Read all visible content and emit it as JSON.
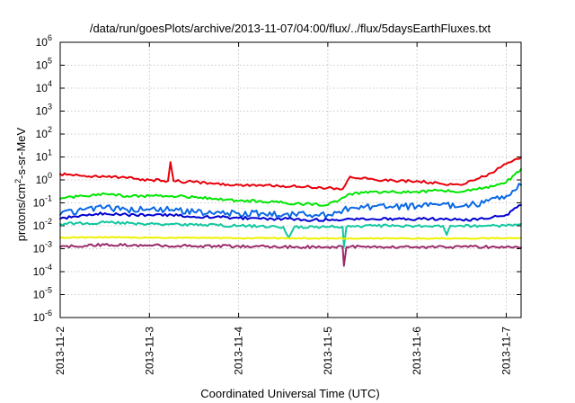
{
  "chart_data": {
    "type": "line",
    "title": "/data/run/goesPlots/archive/2013-11-07/04:00/flux/../flux/5daysEarthFluxes.txt",
    "xlabel": "Coordinated Universal Time (UTC)",
    "ylabel": {
      "prefix": "protons/cm",
      "sup": "2",
      "suffix": "-s-sr-MeV"
    },
    "y_scale": "log",
    "ylim": [
      1e-06,
      1000000.0
    ],
    "y_ticks": [
      {
        "base": "10",
        "exp": "-6"
      },
      {
        "base": "10",
        "exp": "-5"
      },
      {
        "base": "10",
        "exp": "-4"
      },
      {
        "base": "10",
        "exp": "-3"
      },
      {
        "base": "10",
        "exp": "-2"
      },
      {
        "base": "10",
        "exp": "-1"
      },
      {
        "base": "10",
        "exp": "0"
      },
      {
        "base": "10",
        "exp": "1"
      },
      {
        "base": "10",
        "exp": "2"
      },
      {
        "base": "10",
        "exp": "3"
      },
      {
        "base": "10",
        "exp": "4"
      },
      {
        "base": "10",
        "exp": "5"
      },
      {
        "base": "10",
        "exp": "6"
      }
    ],
    "xlim": [
      "2013-11-02 00:00",
      "2013-11-07 04:00"
    ],
    "x_ticks": [
      "2013-11-2",
      "2013-11-3",
      "2013-11-4",
      "2013-11-5",
      "2013-11-6",
      "2013-11-7"
    ],
    "grid": true,
    "legend": "none",
    "series": [
      {
        "color": "#e8000b",
        "points": [
          [
            "2013-11-02 00:00",
            1.8
          ],
          [
            "2013-11-02 06:00",
            1.5
          ],
          [
            "2013-11-02 12:00",
            1.4
          ],
          [
            "2013-11-02 18:00",
            1.2
          ],
          [
            "2013-11-03 00:00",
            1.0
          ],
          [
            "2013-11-03 05:00",
            0.9
          ],
          [
            "2013-11-03 05:40",
            6.0
          ],
          [
            "2013-11-03 06:30",
            0.9
          ],
          [
            "2013-11-03 12:00",
            0.8
          ],
          [
            "2013-11-03 18:00",
            0.7
          ],
          [
            "2013-11-04 00:00",
            0.6
          ],
          [
            "2013-11-04 06:00",
            0.6
          ],
          [
            "2013-11-04 12:00",
            0.55
          ],
          [
            "2013-11-04 18:00",
            0.5
          ],
          [
            "2013-11-05 00:00",
            0.45
          ],
          [
            "2013-11-05 04:00",
            0.4
          ],
          [
            "2013-11-05 06:00",
            1.4
          ],
          [
            "2013-11-05 12:00",
            1.1
          ],
          [
            "2013-11-05 18:00",
            0.9
          ],
          [
            "2013-11-06 00:00",
            0.9
          ],
          [
            "2013-11-06 06:00",
            0.7
          ],
          [
            "2013-11-06 12:00",
            0.6
          ],
          [
            "2013-11-06 18:00",
            1.4
          ],
          [
            "2013-11-06 20:00",
            2.0
          ],
          [
            "2013-11-07 00:00",
            5.0
          ],
          [
            "2013-11-07 04:00",
            10.0
          ]
        ]
      },
      {
        "color": "#00e600",
        "points": [
          [
            "2013-11-02 00:00",
            0.15
          ],
          [
            "2013-11-02 06:00",
            0.2
          ],
          [
            "2013-11-02 12:00",
            0.25
          ],
          [
            "2013-11-02 18:00",
            0.2
          ],
          [
            "2013-11-03 00:00",
            0.2
          ],
          [
            "2013-11-03 06:00",
            0.2
          ],
          [
            "2013-11-03 12:00",
            0.18
          ],
          [
            "2013-11-03 18:00",
            0.15
          ],
          [
            "2013-11-04 00:00",
            0.12
          ],
          [
            "2013-11-04 06:00",
            0.12
          ],
          [
            "2013-11-04 12:00",
            0.1
          ],
          [
            "2013-11-04 18:00",
            0.09
          ],
          [
            "2013-11-05 00:00",
            0.08
          ],
          [
            "2013-11-05 06:00",
            0.25
          ],
          [
            "2013-11-05 12:00",
            0.3
          ],
          [
            "2013-11-05 18:00",
            0.3
          ],
          [
            "2013-11-06 00:00",
            0.3
          ],
          [
            "2013-11-06 06:00",
            0.35
          ],
          [
            "2013-11-06 12:00",
            0.3
          ],
          [
            "2013-11-06 18:00",
            0.45
          ],
          [
            "2013-11-07 00:00",
            0.8
          ],
          [
            "2013-11-07 04:00",
            3.0
          ]
        ]
      },
      {
        "color": "#0a68e6",
        "points": [
          [
            "2013-11-02 00:00",
            0.03
          ],
          [
            "2013-11-02 06:00",
            0.05
          ],
          [
            "2013-11-02 12:00",
            0.06
          ],
          [
            "2013-11-02 18:00",
            0.05
          ],
          [
            "2013-11-03 00:00",
            0.05
          ],
          [
            "2013-11-03 06:00",
            0.05
          ],
          [
            "2013-11-03 12:00",
            0.04
          ],
          [
            "2013-11-03 18:00",
            0.04
          ],
          [
            "2013-11-04 00:00",
            0.035
          ],
          [
            "2013-11-04 06:00",
            0.035
          ],
          [
            "2013-11-04 12:00",
            0.03
          ],
          [
            "2013-11-04 18:00",
            0.03
          ],
          [
            "2013-11-05 00:00",
            0.03
          ],
          [
            "2013-11-05 06:00",
            0.06
          ],
          [
            "2013-11-05 12:00",
            0.07
          ],
          [
            "2013-11-05 18:00",
            0.07
          ],
          [
            "2013-11-06 00:00",
            0.07
          ],
          [
            "2013-11-06 06:00",
            0.08
          ],
          [
            "2013-11-06 12:00",
            0.07
          ],
          [
            "2013-11-06 18:00",
            0.1
          ],
          [
            "2013-11-07 00:00",
            0.2
          ],
          [
            "2013-11-07 04:00",
            0.6
          ]
        ]
      },
      {
        "color": "#0000d2",
        "points": [
          [
            "2013-11-02 00:00",
            0.02
          ],
          [
            "2013-11-02 06:00",
            0.03
          ],
          [
            "2013-11-02 12:00",
            0.035
          ],
          [
            "2013-11-02 18:00",
            0.03
          ],
          [
            "2013-11-03 00:00",
            0.03
          ],
          [
            "2013-11-03 06:00",
            0.03
          ],
          [
            "2013-11-03 12:00",
            0.025
          ],
          [
            "2013-11-03 18:00",
            0.025
          ],
          [
            "2013-11-04 00:00",
            0.022
          ],
          [
            "2013-11-04 06:00",
            0.02
          ],
          [
            "2013-11-04 12:00",
            0.02
          ],
          [
            "2013-11-04 18:00",
            0.018
          ],
          [
            "2013-11-05 00:00",
            0.018
          ],
          [
            "2013-11-05 06:00",
            0.02
          ],
          [
            "2013-11-05 12:00",
            0.02
          ],
          [
            "2013-11-05 18:00",
            0.02
          ],
          [
            "2013-11-06 00:00",
            0.02
          ],
          [
            "2013-11-06 06:00",
            0.02
          ],
          [
            "2013-11-06 12:00",
            0.018
          ],
          [
            "2013-11-06 18:00",
            0.02
          ],
          [
            "2013-11-07 00:00",
            0.03
          ],
          [
            "2013-11-07 04:00",
            0.08
          ]
        ]
      },
      {
        "color": "#10c8a0",
        "points": [
          [
            "2013-11-02 00:00",
            0.012
          ],
          [
            "2013-11-02 12:00",
            0.014
          ],
          [
            "2013-11-03 00:00",
            0.012
          ],
          [
            "2013-11-03 12:00",
            0.011
          ],
          [
            "2013-11-04 00:00",
            0.01
          ],
          [
            "2013-11-04 12:00",
            0.009
          ],
          [
            "2013-11-04 13:30",
            0.003
          ],
          [
            "2013-11-04 15:00",
            0.009
          ],
          [
            "2013-11-05 00:00",
            0.009
          ],
          [
            "2013-11-05 04:00",
            0.009
          ],
          [
            "2013-11-05 04:20",
            0.0012
          ],
          [
            "2013-11-05 05:00",
            0.009
          ],
          [
            "2013-11-05 12:00",
            0.01
          ],
          [
            "2013-11-06 00:00",
            0.01
          ],
          [
            "2013-11-06 07:00",
            0.01
          ],
          [
            "2013-11-06 08:00",
            0.004
          ],
          [
            "2013-11-06 09:00",
            0.01
          ],
          [
            "2013-11-06 12:00",
            0.01
          ],
          [
            "2013-11-07 00:00",
            0.01
          ],
          [
            "2013-11-07 04:00",
            0.012
          ]
        ]
      },
      {
        "color": "#f0f000",
        "points": [
          [
            "2013-11-02 00:00",
            0.003
          ],
          [
            "2013-11-02 12:00",
            0.0032
          ],
          [
            "2013-11-03 00:00",
            0.003
          ],
          [
            "2013-11-03 12:00",
            0.003
          ],
          [
            "2013-11-04 00:00",
            0.0029
          ],
          [
            "2013-11-04 12:00",
            0.0029
          ],
          [
            "2013-11-05 00:00",
            0.0028
          ],
          [
            "2013-11-05 12:00",
            0.0028
          ],
          [
            "2013-11-06 00:00",
            0.0028
          ],
          [
            "2013-11-06 12:00",
            0.0028
          ],
          [
            "2013-11-07 00:00",
            0.0029
          ],
          [
            "2013-11-07 04:00",
            0.003
          ]
        ]
      },
      {
        "color": "#9a2a6a",
        "points": [
          [
            "2013-11-02 00:00",
            0.0012
          ],
          [
            "2013-11-02 12:00",
            0.0015
          ],
          [
            "2013-11-03 00:00",
            0.0014
          ],
          [
            "2013-11-03 12:00",
            0.0013
          ],
          [
            "2013-11-04 00:00",
            0.0013
          ],
          [
            "2013-11-04 12:00",
            0.0012
          ],
          [
            "2013-11-05 00:00",
            0.0012
          ],
          [
            "2013-11-05 04:00",
            0.0012
          ],
          [
            "2013-11-05 04:20",
            0.00018
          ],
          [
            "2013-11-05 05:00",
            0.0012
          ],
          [
            "2013-11-05 12:00",
            0.0012
          ],
          [
            "2013-11-06 00:00",
            0.0012
          ],
          [
            "2013-11-06 12:00",
            0.0012
          ],
          [
            "2013-11-07 00:00",
            0.0012
          ],
          [
            "2013-11-07 04:00",
            0.0011
          ]
        ]
      }
    ]
  }
}
